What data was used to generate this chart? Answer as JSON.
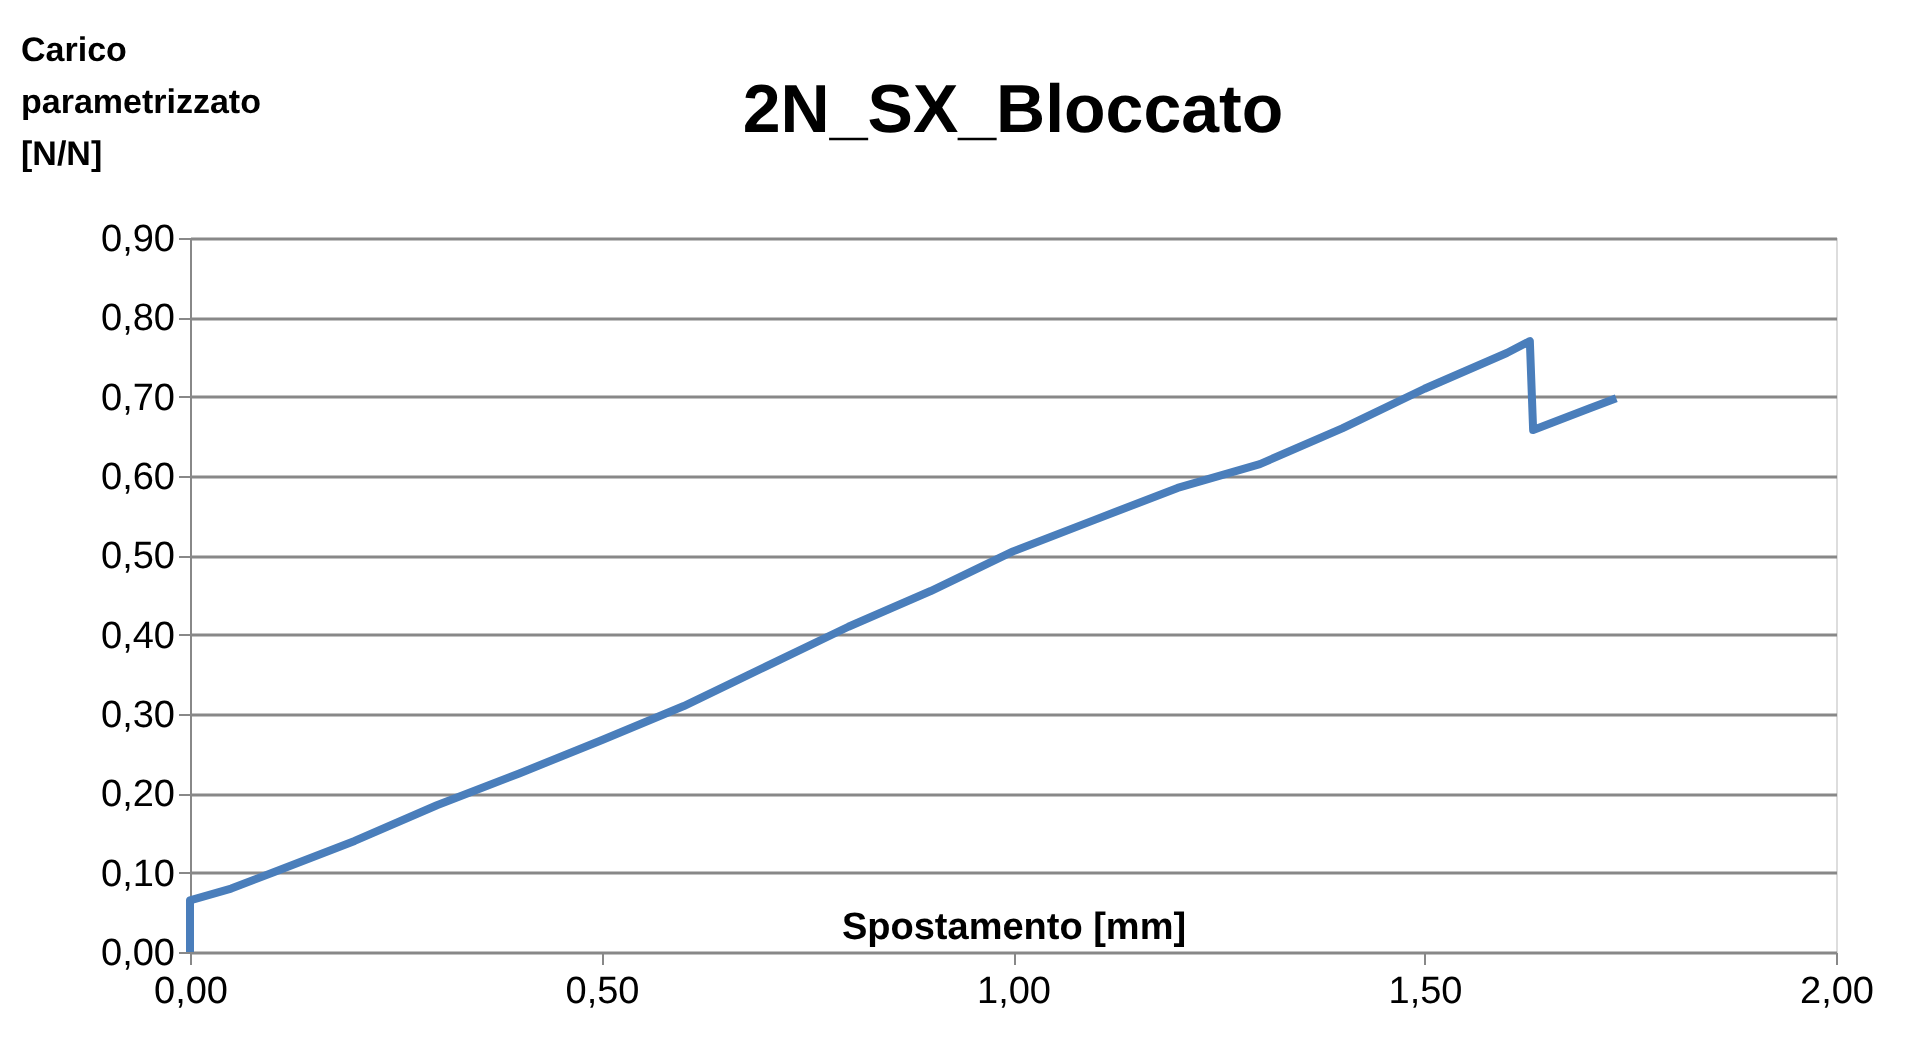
{
  "chart_data": {
    "type": "line",
    "title": "2N_SX_Bloccato",
    "xlabel": "Spostamento [mm]",
    "ylabel": "Carico parametrizzato [N/N]",
    "series": [
      {
        "color": "#4a7ebb",
        "x": [
          0,
          0,
          0.05,
          0.1,
          0.2,
          0.3,
          0.4,
          0.5,
          0.6,
          0.7,
          0.8,
          0.9,
          1.0,
          1.1,
          1.2,
          1.3,
          1.4,
          1.5,
          1.6,
          1.628,
          1.632,
          1.7,
          1.733
        ],
        "values": [
          0,
          0.065,
          0.08,
          0.1,
          0.14,
          0.185,
          0.225,
          0.267,
          0.31,
          0.36,
          0.41,
          0.455,
          0.505,
          0.545,
          0.585,
          0.615,
          0.66,
          0.71,
          0.755,
          0.77,
          0.658,
          0.685,
          0.698
        ]
      }
    ],
    "xlim": [
      0,
      2
    ],
    "ylim": [
      0,
      0.9
    ],
    "xticks": [
      {
        "value": 0,
        "label": "0,00"
      },
      {
        "value": 0.5,
        "label": "0,50"
      },
      {
        "value": 1,
        "label": "1,00"
      },
      {
        "value": 1.5,
        "label": "1,50"
      },
      {
        "value": 2,
        "label": "2,00"
      }
    ],
    "yticks": [
      {
        "value": 0,
        "label": "0,00"
      },
      {
        "value": 0.1,
        "label": "0,10"
      },
      {
        "value": 0.2,
        "label": "0,20"
      },
      {
        "value": 0.3,
        "label": "0,30"
      },
      {
        "value": 0.4,
        "label": "0,40"
      },
      {
        "value": 0.5,
        "label": "0,50"
      },
      {
        "value": 0.6,
        "label": "0,60"
      },
      {
        "value": 0.7,
        "label": "0,70"
      },
      {
        "value": 0.8,
        "label": "0,80"
      },
      {
        "value": 0.9,
        "label": "0,90"
      }
    ],
    "grid": "y",
    "legend": false,
    "marker": "none",
    "line_style": "solid"
  }
}
